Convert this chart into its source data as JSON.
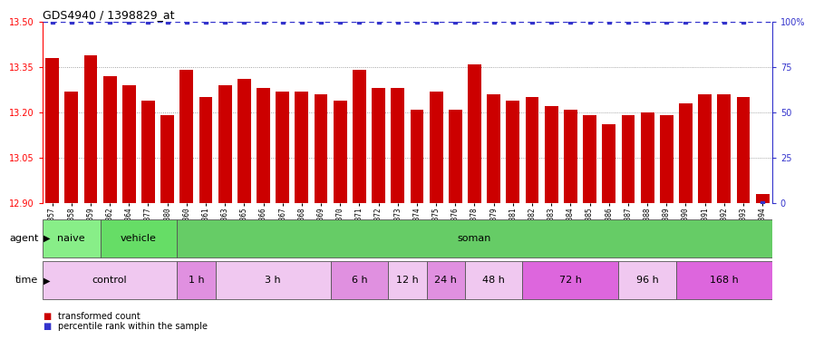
{
  "title": "GDS4940 / 1398829_at",
  "samples": [
    "GSM338857",
    "GSM338858",
    "GSM338859",
    "GSM338862",
    "GSM338864",
    "GSM338877",
    "GSM338880",
    "GSM338860",
    "GSM338861",
    "GSM338863",
    "GSM338865",
    "GSM338866",
    "GSM338867",
    "GSM338868",
    "GSM338869",
    "GSM338870",
    "GSM338871",
    "GSM338872",
    "GSM338873",
    "GSM338874",
    "GSM338875",
    "GSM338876",
    "GSM338878",
    "GSM338879",
    "GSM338881",
    "GSM338882",
    "GSM338883",
    "GSM338884",
    "GSM338885",
    "GSM338886",
    "GSM338887",
    "GSM338888",
    "GSM338889",
    "GSM338890",
    "GSM338891",
    "GSM338892",
    "GSM338893",
    "GSM338894"
  ],
  "bar_values": [
    13.38,
    13.27,
    13.39,
    13.32,
    13.29,
    13.24,
    13.19,
    13.34,
    13.25,
    13.29,
    13.31,
    13.28,
    13.27,
    13.27,
    13.26,
    13.24,
    13.34,
    13.28,
    13.28,
    13.21,
    13.27,
    13.21,
    13.36,
    13.26,
    13.24,
    13.25,
    13.22,
    13.21,
    13.19,
    13.16,
    13.19,
    13.2,
    13.19,
    13.23,
    13.26,
    13.26,
    13.25,
    12.93
  ],
  "percentile_values": [
    100,
    100,
    100,
    100,
    100,
    100,
    100,
    100,
    100,
    100,
    100,
    100,
    100,
    100,
    100,
    100,
    100,
    100,
    100,
    100,
    100,
    100,
    100,
    100,
    100,
    100,
    100,
    100,
    100,
    100,
    100,
    100,
    100,
    100,
    100,
    100,
    100,
    0
  ],
  "bar_color": "#cc0000",
  "percentile_color": "#3333cc",
  "ylim_left": [
    12.9,
    13.5
  ],
  "ylim_right": [
    0,
    100
  ],
  "yticks_left": [
    12.9,
    13.05,
    13.2,
    13.35,
    13.5
  ],
  "yticks_right": [
    0,
    25,
    50,
    75,
    100
  ],
  "agent_groups": [
    {
      "label": "naive",
      "start": 0,
      "end": 3,
      "color": "#88ee88"
    },
    {
      "label": "vehicle",
      "start": 3,
      "end": 7,
      "color": "#66dd66"
    },
    {
      "label": "soman",
      "start": 7,
      "end": 38,
      "color": "#66cc66"
    }
  ],
  "time_groups": [
    {
      "label": "control",
      "start": 0,
      "end": 7,
      "color": "#f0c8f0"
    },
    {
      "label": "1 h",
      "start": 7,
      "end": 9,
      "color": "#e090e0"
    },
    {
      "label": "3 h",
      "start": 9,
      "end": 15,
      "color": "#f0c8f0"
    },
    {
      "label": "6 h",
      "start": 15,
      "end": 18,
      "color": "#e090e0"
    },
    {
      "label": "12 h",
      "start": 18,
      "end": 20,
      "color": "#f0c8f0"
    },
    {
      "label": "24 h",
      "start": 20,
      "end": 22,
      "color": "#e090e0"
    },
    {
      "label": "48 h",
      "start": 22,
      "end": 25,
      "color": "#f0c8f0"
    },
    {
      "label": "72 h",
      "start": 25,
      "end": 30,
      "color": "#dd66dd"
    },
    {
      "label": "96 h",
      "start": 30,
      "end": 33,
      "color": "#f0c8f0"
    },
    {
      "label": "168 h",
      "start": 33,
      "end": 38,
      "color": "#dd66dd"
    }
  ],
  "plot_bg": "#ffffff",
  "tick_area_bg": "#d8d8d8",
  "dotted_grid_color": "#888888",
  "title_fontsize": 9,
  "tick_fontsize": 7,
  "label_fontsize": 8,
  "bar_width": 0.7
}
